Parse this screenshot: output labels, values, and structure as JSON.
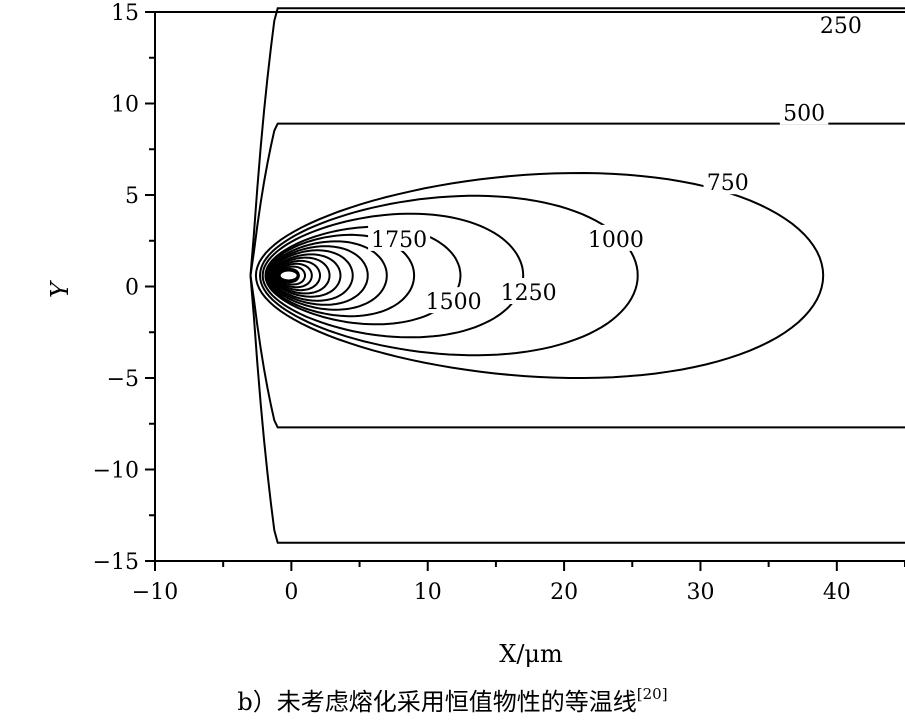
{
  "chart_data": {
    "type": "contour",
    "title": "",
    "xlabel": "X/μm",
    "ylabel": "Y",
    "xlim": [
      -10,
      45
    ],
    "ylim": [
      -15,
      15
    ],
    "xticks": [
      -10,
      0,
      10,
      20,
      30,
      40
    ],
    "yticks": [
      -15,
      -10,
      -5,
      0,
      5,
      10,
      15
    ],
    "grid": false,
    "source": {
      "x": 0,
      "y": 0.6
    },
    "isotherms": [
      {
        "level": 250,
        "label": "250",
        "label_at": [
          40.3,
          14.3
        ],
        "front_x": -3.0,
        "max_halfwidth": 14.6
      },
      {
        "level": 500,
        "label": "500",
        "label_at": [
          37.6,
          9.5
        ],
        "front_x": -3.0,
        "max_halfwidth": 8.3
      },
      {
        "level": 750,
        "label": "750",
        "label_at": [
          32.0,
          5.7
        ],
        "front_x": -2.6,
        "max_halfwidth": 6.3
      },
      {
        "level": 1000,
        "label": "1000",
        "label_at": [
          23.8,
          2.6
        ],
        "front_x": -2.3,
        "max_halfwidth": 4.9
      },
      {
        "level": 1250,
        "label": "1250",
        "label_at": [
          17.4,
          -0.3
        ],
        "front_x": -2.1,
        "max_halfwidth": 3.8
      },
      {
        "level": 1500,
        "label": "1500",
        "label_at": [
          11.9,
          -0.8
        ],
        "front_x": -1.9,
        "max_halfwidth": 3.0
      },
      {
        "level": 1750,
        "label": "1750",
        "label_at": [
          7.9,
          2.6
        ],
        "front_x": -1.8,
        "max_halfwidth": 2.5
      }
    ]
  },
  "caption": {
    "text": "b）未考虑熔化采用恒值物性的等温线",
    "ref": "[20]"
  }
}
